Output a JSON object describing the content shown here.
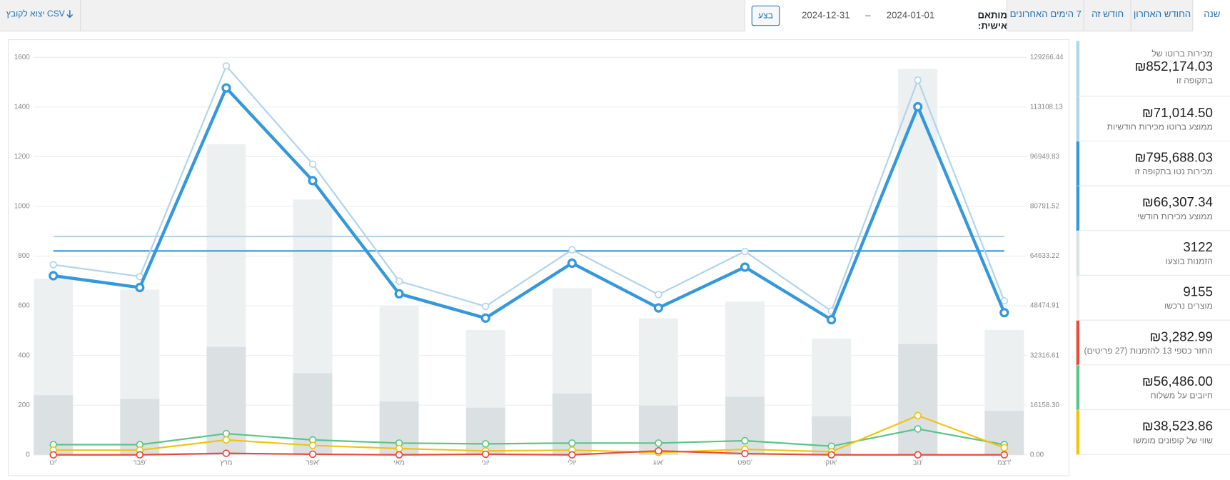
{
  "top_bar": {
    "tabs": [
      "שנה",
      "החודש האחרון",
      "חודש זה",
      "7 הימים האחרונים"
    ],
    "custom_label": "מותאם אישית:",
    "date_from": "2024-01-01",
    "date_separator": "–",
    "date_to": "2024-12-31",
    "button": "בצע",
    "export": "יצוא לקובץ CSV"
  },
  "sidebar": {
    "items": [
      {
        "pre": "מכירות ברוטו של",
        "value": "₪852,174.03",
        "label": "בתקופה זו"
      },
      {
        "value": "₪71,014.50",
        "label": "ממוצע ברוטו מכירות חודשיות"
      },
      {
        "value": "₪795,688.03",
        "label": "מכירות נטו בתקופה זו"
      },
      {
        "value": "₪66,307.34",
        "label": "ממוצע מכירות חודשי"
      },
      {
        "value": "3122",
        "label": "הזמנות בוצעו"
      },
      {
        "value": "9155",
        "label": "מוצרים נרכשו"
      },
      {
        "value": "₪3,282.99",
        "label": "החזר כספי 13 להזמנות (27 פריטים)"
      },
      {
        "value": "₪56,486.00",
        "label": "חיובים על משלוח"
      },
      {
        "value": "₪38,523.86",
        "label": "שווי של קופונים מומשו"
      }
    ]
  },
  "chart_data": {
    "type": "combo",
    "categories": [
      "ינו'",
      "פבר'",
      "מרץ",
      "אפר'",
      "מאי",
      "יוני",
      "יולי",
      "אוג'",
      "ספט'",
      "אוק'",
      "נוב'",
      "דצמ'"
    ],
    "ylim": [
      0,
      1600
    ],
    "yticks": [
      0,
      200,
      400,
      600,
      800,
      1000,
      1200,
      1400,
      1600
    ],
    "y2lim": [
      0,
      129266.44
    ],
    "y2ticks": [
      {
        "value": 0,
        "label": "0.00"
      },
      {
        "value": 16158.3,
        "label": "16158.30"
      },
      32316.61,
      48474.91,
      64633.22,
      80791.52,
      96949.83,
      113108.13,
      129266.44
    ],
    "grid": true,
    "series": [
      {
        "type": "bar",
        "axis": "y",
        "color": "#ecf0f1",
        "values": [
          709,
          665,
          1250,
          1028,
          598,
          503,
          671,
          550,
          617,
          468,
          1554,
          503
        ]
      },
      {
        "type": "bar",
        "axis": "y",
        "color": "#dbe1e3",
        "values": [
          240,
          225,
          434,
          329,
          215,
          190,
          247,
          199,
          234,
          155,
          446,
          177
        ]
      },
      {
        "type": "line",
        "axis": "y2",
        "color": "#b1d4ea",
        "width": 2,
        "values": [
          61830,
          58000,
          126470,
          94530,
          56470,
          48290,
          66690,
          52120,
          66170,
          46760,
          121870,
          50080
        ]
      },
      {
        "type": "line",
        "axis": "y2",
        "color": "#3498db",
        "width": 4,
        "values": [
          58250,
          54420,
          119320,
          89170,
          52380,
          44460,
          62340,
          47780,
          61060,
          43950,
          113190,
          46250
        ]
      },
      {
        "type": "line",
        "axis": "y2",
        "color": "#5cc488",
        "width": 2,
        "values": [
          3320,
          3320,
          6900,
          4850,
          3830,
          3580,
          3830,
          3830,
          4600,
          2810,
          8430,
          3320
        ]
      },
      {
        "type": "line",
        "axis": "y2",
        "color": "#f1c40f",
        "width": 2,
        "values": [
          1530,
          1530,
          4850,
          3070,
          2040,
          1280,
          1530,
          770,
          1790,
          1020,
          12780,
          2300
        ]
      },
      {
        "type": "line",
        "axis": "y2",
        "color": "#e74c3c",
        "width": 2,
        "values": [
          0,
          0,
          500,
          200,
          0,
          200,
          0,
          1300,
          400,
          0,
          0,
          0
        ]
      }
    ],
    "average_lines": [
      {
        "axis": "y2",
        "color": "#b1d4ea",
        "value": 71014.5
      },
      {
        "axis": "y2",
        "color": "#3498db",
        "value": 66307.34
      }
    ]
  }
}
